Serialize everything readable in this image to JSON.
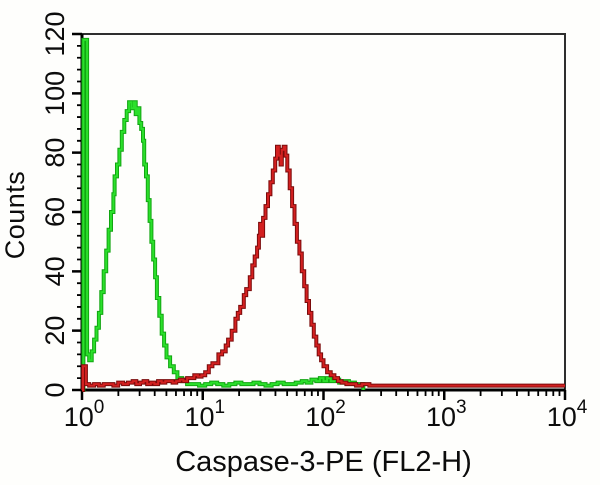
{
  "figure": {
    "xlabel": "Caspase-3-PE (FL2-H)",
    "ylabel": "Counts"
  },
  "chart_data": {
    "type": "line",
    "subtype": "flow-cytometry-overlay-histogram",
    "title": "",
    "xlabel": "Caspase-3-PE (FL2-H)",
    "ylabel": "Counts",
    "x_scale": "log10",
    "x_range_log10": [
      0,
      4
    ],
    "x_decade_exponents": [
      0,
      1,
      2,
      3,
      4
    ],
    "ylim": [
      0,
      120
    ],
    "y_major_ticks": [
      0,
      20,
      40,
      60,
      80,
      100,
      120
    ],
    "y_minor_step": 4,
    "grid": false,
    "legend": "none",
    "frame_color": "#2e2e2e",
    "axis_color": "#000000",
    "series": [
      {
        "name": "green-curve",
        "color": "#2be02b",
        "edge_color": "#11a511",
        "peak_x": 2.6,
        "peak_counts": 97,
        "points": [
          [
            0.0,
            0
          ],
          [
            0.012,
            118
          ],
          [
            0.035,
            118
          ],
          [
            0.042,
            12
          ],
          [
            0.06,
            10
          ],
          [
            0.08,
            13
          ],
          [
            0.1,
            17
          ],
          [
            0.12,
            21
          ],
          [
            0.14,
            26
          ],
          [
            0.16,
            33
          ],
          [
            0.18,
            40
          ],
          [
            0.2,
            47
          ],
          [
            0.22,
            54
          ],
          [
            0.24,
            60
          ],
          [
            0.26,
            66
          ],
          [
            0.27,
            72
          ],
          [
            0.29,
            76
          ],
          [
            0.31,
            81
          ],
          [
            0.33,
            87
          ],
          [
            0.35,
            91
          ],
          [
            0.37,
            94
          ],
          [
            0.39,
            97
          ],
          [
            0.41,
            95
          ],
          [
            0.43,
            97
          ],
          [
            0.445,
            93
          ],
          [
            0.46,
            95
          ],
          [
            0.475,
            90
          ],
          [
            0.49,
            88
          ],
          [
            0.505,
            84
          ],
          [
            0.515,
            76
          ],
          [
            0.53,
            72
          ],
          [
            0.545,
            64
          ],
          [
            0.56,
            57
          ],
          [
            0.575,
            50
          ],
          [
            0.59,
            44
          ],
          [
            0.605,
            38
          ],
          [
            0.62,
            31
          ],
          [
            0.64,
            25
          ],
          [
            0.66,
            19
          ],
          [
            0.68,
            15
          ],
          [
            0.7,
            11
          ],
          [
            0.73,
            8
          ],
          [
            0.76,
            6
          ],
          [
            0.79,
            4
          ],
          [
            0.83,
            3
          ],
          [
            0.87,
            2
          ],
          [
            0.92,
            2
          ],
          [
            0.97,
            1.5
          ],
          [
            1.02,
            2
          ],
          [
            1.07,
            2.5
          ],
          [
            1.12,
            2
          ],
          [
            1.17,
            1.5
          ],
          [
            1.22,
            2
          ],
          [
            1.27,
            2.5
          ],
          [
            1.32,
            2
          ],
          [
            1.37,
            2
          ],
          [
            1.42,
            2.5
          ],
          [
            1.47,
            2
          ],
          [
            1.52,
            1.5
          ],
          [
            1.57,
            2
          ],
          [
            1.62,
            2.5
          ],
          [
            1.67,
            2
          ],
          [
            1.72,
            2
          ],
          [
            1.77,
            2.5
          ],
          [
            1.82,
            3
          ],
          [
            1.86,
            2.5
          ],
          [
            1.9,
            3.5
          ],
          [
            1.94,
            3
          ],
          [
            1.97,
            4
          ],
          [
            2.0,
            3
          ],
          [
            2.03,
            4
          ],
          [
            2.06,
            3
          ],
          [
            2.09,
            3.5
          ],
          [
            2.13,
            2.5
          ],
          [
            2.17,
            3
          ],
          [
            2.21,
            2.5
          ],
          [
            2.26,
            2
          ],
          [
            2.31,
            2
          ],
          [
            2.33,
            0
          ]
        ]
      },
      {
        "name": "red-curve",
        "color": "#d32020",
        "edge_color": "#7a0a0a",
        "peak_x": 45,
        "peak_counts": 82,
        "points": [
          [
            0.0,
            0
          ],
          [
            0.008,
            8
          ],
          [
            0.025,
            8
          ],
          [
            0.032,
            2
          ],
          [
            0.06,
            1.5
          ],
          [
            0.1,
            2
          ],
          [
            0.14,
            1.5
          ],
          [
            0.18,
            2
          ],
          [
            0.22,
            2
          ],
          [
            0.26,
            1.5
          ],
          [
            0.3,
            2.5
          ],
          [
            0.34,
            2
          ],
          [
            0.38,
            2.5
          ],
          [
            0.42,
            3
          ],
          [
            0.45,
            2
          ],
          [
            0.48,
            2.5
          ],
          [
            0.51,
            3
          ],
          [
            0.54,
            2
          ],
          [
            0.57,
            2.5
          ],
          [
            0.6,
            2
          ],
          [
            0.63,
            3
          ],
          [
            0.66,
            2.5
          ],
          [
            0.69,
            3
          ],
          [
            0.72,
            3
          ],
          [
            0.75,
            2.5
          ],
          [
            0.78,
            3
          ],
          [
            0.81,
            3.5
          ],
          [
            0.84,
            3
          ],
          [
            0.87,
            4
          ],
          [
            0.9,
            4
          ],
          [
            0.93,
            5
          ],
          [
            0.96,
            4.5
          ],
          [
            0.99,
            5
          ],
          [
            1.02,
            6
          ],
          [
            1.05,
            8
          ],
          [
            1.08,
            9
          ],
          [
            1.11,
            9
          ],
          [
            1.13,
            12
          ],
          [
            1.16,
            13
          ],
          [
            1.19,
            15
          ],
          [
            1.21,
            17
          ],
          [
            1.24,
            20
          ],
          [
            1.27,
            24
          ],
          [
            1.29,
            26
          ],
          [
            1.31,
            28
          ],
          [
            1.34,
            32
          ],
          [
            1.36,
            34
          ],
          [
            1.39,
            38
          ],
          [
            1.41,
            42
          ],
          [
            1.43,
            45
          ],
          [
            1.45,
            48
          ],
          [
            1.465,
            52
          ],
          [
            1.475,
            56
          ],
          [
            1.485,
            52
          ],
          [
            1.5,
            58
          ],
          [
            1.52,
            62
          ],
          [
            1.54,
            66
          ],
          [
            1.56,
            70
          ],
          [
            1.58,
            74
          ],
          [
            1.6,
            78
          ],
          [
            1.615,
            82
          ],
          [
            1.63,
            79
          ],
          [
            1.645,
            76
          ],
          [
            1.655,
            81
          ],
          [
            1.67,
            82
          ],
          [
            1.685,
            79
          ],
          [
            1.7,
            74
          ],
          [
            1.72,
            68
          ],
          [
            1.74,
            62
          ],
          [
            1.76,
            56
          ],
          [
            1.78,
            50
          ],
          [
            1.8,
            46
          ],
          [
            1.82,
            40
          ],
          [
            1.84,
            35
          ],
          [
            1.86,
            30
          ],
          [
            1.88,
            26
          ],
          [
            1.9,
            22
          ],
          [
            1.92,
            18
          ],
          [
            1.94,
            15
          ],
          [
            1.96,
            12
          ],
          [
            1.98,
            10
          ],
          [
            2.0,
            8
          ],
          [
            2.03,
            6
          ],
          [
            2.06,
            5
          ],
          [
            2.09,
            4
          ],
          [
            2.12,
            3
          ],
          [
            2.15,
            2.5
          ],
          [
            2.19,
            2
          ],
          [
            2.23,
            2
          ],
          [
            2.27,
            1.5
          ],
          [
            2.32,
            2
          ],
          [
            2.38,
            1.5
          ],
          [
            2.5,
            1.5
          ],
          [
            2.62,
            1.5
          ],
          [
            2.74,
            1.5
          ],
          [
            2.86,
            1.5
          ],
          [
            2.98,
            1.5
          ],
          [
            3.1,
            1.5
          ],
          [
            3.22,
            1.5
          ],
          [
            3.34,
            1.5
          ],
          [
            3.46,
            1.5
          ],
          [
            3.58,
            1.5
          ],
          [
            3.7,
            1.5
          ],
          [
            3.82,
            1.5
          ],
          [
            3.94,
            1.5
          ],
          [
            4.0,
            1.5
          ]
        ]
      }
    ]
  }
}
